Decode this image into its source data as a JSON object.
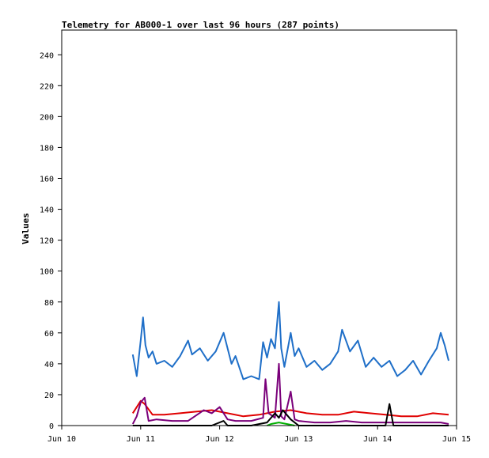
{
  "colors": {
    "background": "#ffffff",
    "frame": "#000000",
    "series": [
      "#1f6fc8",
      "#e00000",
      "#7a007a",
      "#000000",
      "#00b000"
    ]
  },
  "chart_data": {
    "type": "line",
    "title": "Telemetry for AB000-1 over last 96 hours (287 points)",
    "xlabel": "",
    "ylabel": "Values",
    "x_ticks": [
      "Jun 10",
      "Jun 11",
      "Jun 12",
      "Jun 13",
      "Jun 14",
      "Jun 15"
    ],
    "y_ticks": [
      0,
      20,
      40,
      60,
      80,
      100,
      120,
      140,
      160,
      180,
      200,
      220,
      240
    ],
    "xlim": [
      0,
      5
    ],
    "ylim": [
      0,
      256
    ],
    "x_unit": "days from Jun 10",
    "grid": false,
    "legend": "none",
    "series": [
      {
        "color": "#1f6fc8",
        "x": [
          0.9,
          0.95,
          1.0,
          1.03,
          1.06,
          1.1,
          1.15,
          1.2,
          1.3,
          1.4,
          1.5,
          1.6,
          1.65,
          1.75,
          1.85,
          1.95,
          2.05,
          2.15,
          2.2,
          2.3,
          2.4,
          2.5,
          2.55,
          2.6,
          2.65,
          2.7,
          2.75,
          2.78,
          2.82,
          2.9,
          2.95,
          3.0,
          3.1,
          3.2,
          3.3,
          3.4,
          3.5,
          3.55,
          3.65,
          3.75,
          3.85,
          3.95,
          4.05,
          4.15,
          4.25,
          4.35,
          4.45,
          4.55,
          4.65,
          4.75,
          4.8,
          4.85,
          4.9
        ],
        "values": [
          46,
          32,
          55,
          70,
          52,
          44,
          48,
          40,
          42,
          38,
          45,
          55,
          46,
          50,
          42,
          48,
          60,
          40,
          45,
          30,
          32,
          30,
          54,
          44,
          56,
          50,
          80,
          50,
          38,
          60,
          45,
          50,
          38,
          42,
          36,
          40,
          48,
          62,
          48,
          55,
          38,
          44,
          38,
          42,
          32,
          36,
          42,
          33,
          42,
          50,
          60,
          52,
          42
        ]
      },
      {
        "color": "#e00000",
        "x": [
          0.9,
          1.0,
          1.05,
          1.15,
          1.3,
          1.5,
          1.7,
          1.9,
          2.1,
          2.3,
          2.5,
          2.7,
          2.9,
          3.1,
          3.3,
          3.5,
          3.7,
          3.9,
          4.1,
          4.3,
          4.5,
          4.7,
          4.9
        ],
        "values": [
          8,
          16,
          14,
          7,
          7,
          8,
          9,
          10,
          8,
          6,
          7,
          9,
          10,
          8,
          7,
          7,
          9,
          8,
          7,
          6,
          6,
          8,
          7
        ]
      },
      {
        "color": "#7a007a",
        "x": [
          0.9,
          0.95,
          1.0,
          1.05,
          1.1,
          1.2,
          1.4,
          1.6,
          1.8,
          1.9,
          2.0,
          2.1,
          2.2,
          2.4,
          2.55,
          2.58,
          2.62,
          2.7,
          2.75,
          2.78,
          2.82,
          2.9,
          2.95,
          3.0,
          3.2,
          3.4,
          3.6,
          3.8,
          4.0,
          4.2,
          4.4,
          4.6,
          4.8,
          4.9
        ],
        "values": [
          1,
          6,
          15,
          18,
          3,
          4,
          3,
          3,
          10,
          8,
          12,
          4,
          3,
          3,
          5,
          30,
          8,
          5,
          40,
          6,
          4,
          22,
          4,
          3,
          2,
          2,
          3,
          2,
          2,
          2,
          2,
          2,
          2,
          1
        ]
      },
      {
        "color": "#000000",
        "x": [
          0.9,
          1.0,
          1.5,
          1.9,
          2.05,
          2.1,
          2.4,
          2.6,
          2.7,
          2.75,
          2.8,
          2.9,
          3.0,
          3.1,
          3.5,
          4.0,
          4.1,
          4.15,
          4.2,
          4.6,
          4.9
        ],
        "values": [
          0,
          0,
          0,
          0,
          3,
          0,
          0,
          2,
          8,
          5,
          10,
          4,
          0,
          0,
          0,
          0,
          0,
          14,
          0,
          0,
          0
        ]
      },
      {
        "color": "#00b000",
        "x": [
          2.6,
          2.65,
          2.75,
          2.85,
          2.95
        ],
        "values": [
          0,
          1,
          2,
          1,
          0
        ]
      }
    ]
  }
}
